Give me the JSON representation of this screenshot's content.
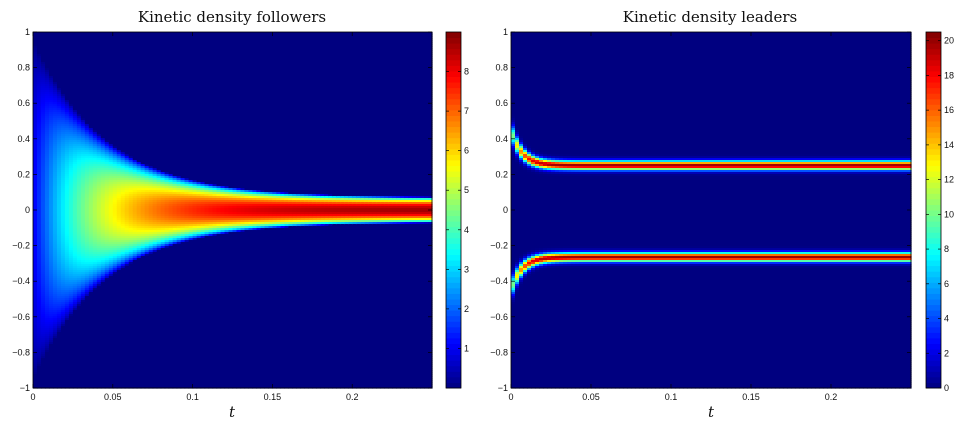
{
  "chart_data": [
    {
      "type": "heatmap",
      "title": "Kinetic density followers",
      "xlabel": "t",
      "ylabel": "",
      "xlim": [
        0,
        0.25
      ],
      "ylim": [
        -1,
        1
      ],
      "x_ticks": [
        "0",
        "0.05",
        "0.1",
        "0.15",
        "0.2"
      ],
      "y_ticks": [
        "−1",
        "−0.8",
        "−0.6",
        "−0.4",
        "−0.2",
        "0",
        "0.2",
        "0.4",
        "0.6",
        "0.8",
        "1"
      ],
      "colorbar": {
        "min": 0,
        "max": 9,
        "colormap": "jet",
        "ticks": [
          "1",
          "2",
          "3",
          "4",
          "5",
          "6",
          "7",
          "8"
        ]
      },
      "density_model": {
        "kind": "single-band",
        "bands": [
          {
            "center_start": 0,
            "center_end": 0,
            "halfwidth_start": 0.95,
            "halfwidth_end": 0.07,
            "decay_rate": 22,
            "peak_start": 1.0,
            "peak_end": 8.8,
            "peak_rate": 18
          }
        ]
      }
    },
    {
      "type": "heatmap",
      "title": "Kinetic density leaders",
      "xlabel": "t",
      "ylabel": "",
      "xlim": [
        0,
        0.25
      ],
      "ylim": [
        -1,
        1
      ],
      "x_ticks": [
        "0",
        "0.05",
        "0.1",
        "0.15",
        "0.2"
      ],
      "y_ticks": [
        "−1",
        "−0.8",
        "−0.6",
        "−0.4",
        "−0.2",
        "0",
        "0.2",
        "0.4",
        "0.6",
        "0.8",
        "1"
      ],
      "colorbar": {
        "min": 0,
        "max": 20.5,
        "colormap": "jet",
        "ticks": [
          "0",
          "2",
          "4",
          "6",
          "8",
          "10",
          "12",
          "14",
          "16",
          "18",
          "20"
        ]
      },
      "density_model": {
        "kind": "two-bands",
        "bands": [
          {
            "center_start": 0.45,
            "center_end": 0.25,
            "halfwidth_start": 0.08,
            "halfwidth_end": 0.035,
            "decay_rate": 150,
            "peak_start": 8,
            "peak_end": 20,
            "peak_rate": 150
          },
          {
            "center_start": -0.45,
            "center_end": -0.265,
            "halfwidth_start": 0.08,
            "halfwidth_end": 0.035,
            "decay_rate": 150,
            "peak_start": 8,
            "peak_end": 20,
            "peak_rate": 150
          }
        ]
      }
    }
  ]
}
